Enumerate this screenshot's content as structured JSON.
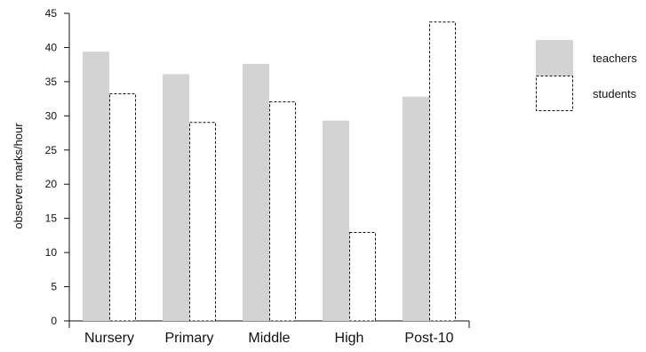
{
  "chart_data": {
    "type": "bar",
    "title": "",
    "xlabel": "",
    "ylabel": "observer marks/hour",
    "ylim": [
      0,
      45
    ],
    "yticks": [
      0,
      5,
      10,
      15,
      20,
      25,
      30,
      35,
      40,
      45
    ],
    "categories": [
      "Nursery",
      "Primary",
      "Middle",
      "High",
      "Post-10"
    ],
    "series": [
      {
        "name": "teachers",
        "values": [
          39.4,
          36.1,
          37.6,
          29.3,
          32.8
        ],
        "fill": "#d3d3d3",
        "stroke": "none",
        "dashed": false
      },
      {
        "name": "students",
        "values": [
          33.3,
          29.1,
          32.1,
          13.0,
          43.8
        ],
        "fill": "#ffffff",
        "stroke": "#111111",
        "dashed": true
      }
    ],
    "legend_position": "top-right",
    "grid": false
  }
}
